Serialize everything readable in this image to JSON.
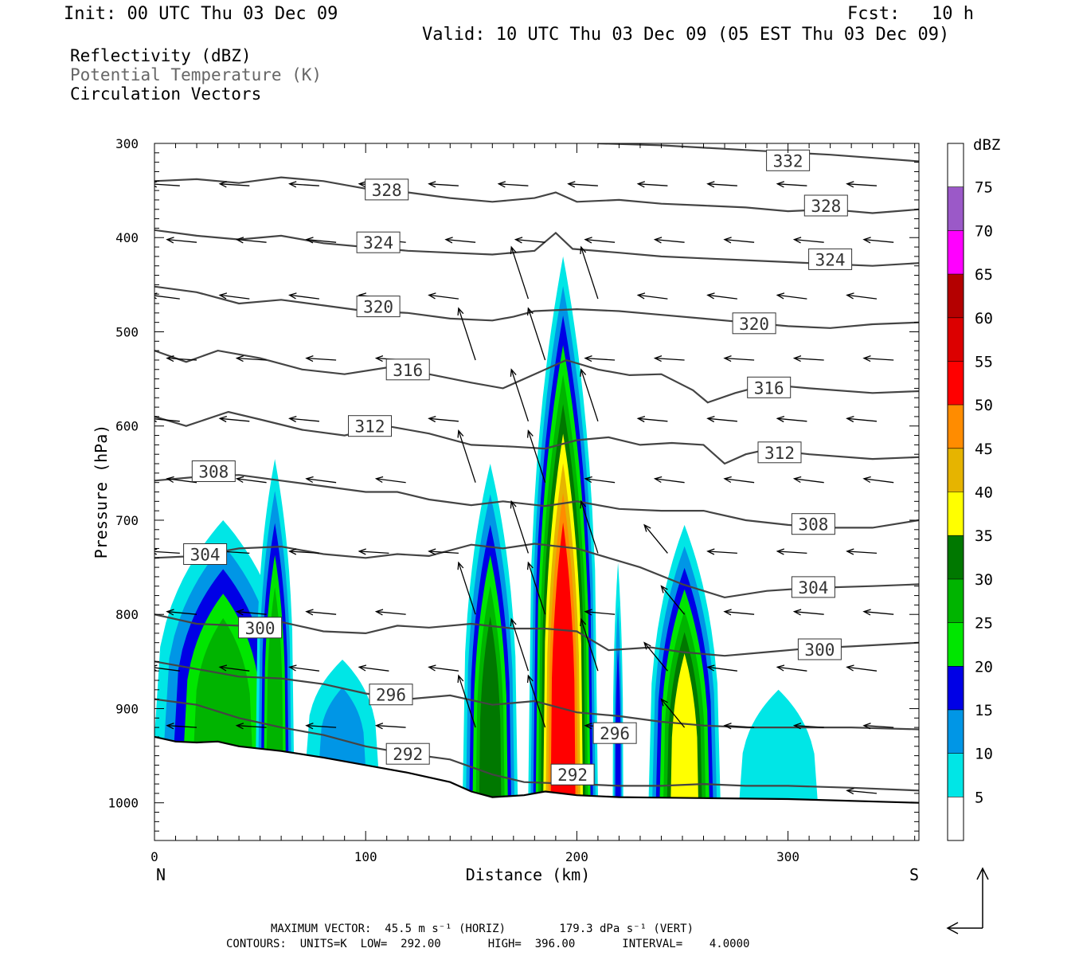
{
  "header": {
    "init": "Init: 00 UTC Thu 03 Dec 09",
    "fcst": "Fcst:   10 h",
    "valid": "Valid: 10 UTC Thu 03 Dec 09 (05 EST Thu 03 Dec 09)"
  },
  "legend": {
    "reflectivity": "Reflectivity (dBZ)",
    "theta": "Potential Temperature (K)",
    "vectors": "Circulation Vectors"
  },
  "colors": {
    "theta_line": "#444444",
    "vector": "#000000",
    "ground": "#000000"
  },
  "chart_data": {
    "type": "cross-section",
    "xlabel": "Distance (km)",
    "ylabel": "Pressure (hPa)",
    "xlim": [
      0,
      362
    ],
    "ylim": [
      1040,
      300
    ],
    "x_ticks": [
      0,
      100,
      200,
      300
    ],
    "y_ticks": [
      300,
      400,
      500,
      600,
      700,
      800,
      900,
      1000
    ],
    "end_labels": {
      "left": "N",
      "right": "S"
    },
    "colorbar": {
      "unit": "dBZ",
      "levels": [
        5,
        10,
        15,
        20,
        25,
        30,
        35,
        40,
        45,
        50,
        55,
        60,
        65,
        70,
        75
      ],
      "colors": [
        "#00e6e6",
        "#0096e6",
        "#0000e6",
        "#00e600",
        "#00b400",
        "#007800",
        "#ffff00",
        "#e6b400",
        "#ff8c00",
        "#ff0000",
        "#dc0000",
        "#b40000",
        "#ff00ff",
        "#9b59c8",
        "#ffffff"
      ]
    },
    "theta_contours": [
      {
        "label": "332",
        "label_at": [
          300,
          318
        ],
        "points": [
          [
            210,
            300
          ],
          [
            240,
            302
          ],
          [
            280,
            307
          ],
          [
            320,
            312
          ],
          [
            362,
            319
          ]
        ]
      },
      {
        "label": "328",
        "label_at": [
          110,
          349
        ],
        "points": [
          [
            0,
            340
          ],
          [
            20,
            338
          ],
          [
            40,
            342
          ],
          [
            60,
            336
          ],
          [
            80,
            340
          ],
          [
            100,
            348
          ],
          [
            120,
            352
          ],
          [
            140,
            358
          ],
          [
            160,
            362
          ],
          [
            180,
            358
          ],
          [
            190,
            352
          ],
          [
            200,
            362
          ],
          [
            220,
            360
          ],
          [
            240,
            364
          ],
          [
            260,
            366
          ],
          [
            280,
            368
          ],
          [
            300,
            372
          ],
          [
            320,
            370
          ],
          [
            340,
            374
          ],
          [
            362,
            370
          ]
        ]
      },
      {
        "label": "328",
        "label_at": [
          318,
          366
        ],
        "points": []
      },
      {
        "label": "324",
        "label_at": [
          106,
          405
        ],
        "points": [
          [
            0,
            392
          ],
          [
            20,
            398
          ],
          [
            40,
            402
          ],
          [
            60,
            398
          ],
          [
            80,
            406
          ],
          [
            100,
            410
          ],
          [
            120,
            414
          ],
          [
            140,
            416
          ],
          [
            160,
            418
          ],
          [
            180,
            414
          ],
          [
            190,
            395
          ],
          [
            198,
            412
          ],
          [
            220,
            416
          ],
          [
            240,
            420
          ],
          [
            260,
            422
          ],
          [
            280,
            424
          ],
          [
            300,
            426
          ],
          [
            320,
            428
          ],
          [
            340,
            430
          ],
          [
            362,
            427
          ]
        ]
      },
      {
        "label": "324",
        "label_at": [
          320,
          423
        ],
        "points": []
      },
      {
        "label": "320",
        "label_at": [
          106,
          473
        ],
        "points": [
          [
            0,
            452
          ],
          [
            20,
            458
          ],
          [
            40,
            470
          ],
          [
            60,
            466
          ],
          [
            80,
            472
          ],
          [
            100,
            478
          ],
          [
            120,
            480
          ],
          [
            140,
            486
          ],
          [
            160,
            488
          ],
          [
            170,
            484
          ],
          [
            180,
            478
          ],
          [
            200,
            476
          ],
          [
            220,
            478
          ],
          [
            240,
            482
          ],
          [
            260,
            486
          ],
          [
            280,
            490
          ],
          [
            300,
            494
          ],
          [
            320,
            496
          ],
          [
            340,
            492
          ],
          [
            362,
            490
          ]
        ]
      },
      {
        "label": "320",
        "label_at": [
          284,
          491
        ],
        "points": []
      },
      {
        "label": "316",
        "label_at": [
          120,
          540
        ],
        "points": [
          [
            0,
            520
          ],
          [
            15,
            532
          ],
          [
            30,
            520
          ],
          [
            50,
            528
          ],
          [
            70,
            540
          ],
          [
            90,
            545
          ],
          [
            110,
            538
          ],
          [
            130,
            545
          ],
          [
            150,
            554
          ],
          [
            165,
            560
          ],
          [
            180,
            545
          ],
          [
            195,
            530
          ],
          [
            210,
            540
          ],
          [
            225,
            546
          ],
          [
            240,
            545
          ],
          [
            255,
            562
          ],
          [
            262,
            575
          ],
          [
            275,
            565
          ],
          [
            290,
            556
          ],
          [
            310,
            560
          ],
          [
            340,
            565
          ],
          [
            362,
            563
          ]
        ]
      },
      {
        "label": "316",
        "label_at": [
          291,
          559
        ],
        "points": []
      },
      {
        "label": "312",
        "label_at": [
          102,
          600
        ],
        "points": [
          [
            0,
            590
          ],
          [
            15,
            600
          ],
          [
            35,
            585
          ],
          [
            50,
            593
          ],
          [
            70,
            604
          ],
          [
            90,
            610
          ],
          [
            110,
            600
          ],
          [
            130,
            608
          ],
          [
            150,
            620
          ],
          [
            170,
            622
          ],
          [
            185,
            624
          ],
          [
            200,
            615
          ],
          [
            215,
            612
          ],
          [
            230,
            620
          ],
          [
            245,
            618
          ],
          [
            260,
            620
          ],
          [
            270,
            640
          ],
          [
            280,
            630
          ],
          [
            290,
            625
          ],
          [
            310,
            630
          ],
          [
            340,
            635
          ],
          [
            362,
            633
          ]
        ]
      },
      {
        "label": "312",
        "label_at": [
          296,
          628
        ],
        "points": []
      },
      {
        "label": "308",
        "label_at": [
          28,
          648
        ],
        "points": [
          [
            0,
            658
          ],
          [
            20,
            654
          ],
          [
            40,
            652
          ],
          [
            60,
            658
          ],
          [
            80,
            664
          ],
          [
            100,
            670
          ],
          [
            115,
            670
          ],
          [
            130,
            678
          ],
          [
            150,
            684
          ],
          [
            165,
            680
          ],
          [
            185,
            685
          ],
          [
            200,
            680
          ],
          [
            220,
            688
          ],
          [
            240,
            690
          ],
          [
            260,
            690
          ],
          [
            280,
            700
          ],
          [
            300,
            705
          ],
          [
            320,
            708
          ],
          [
            340,
            708
          ],
          [
            362,
            700
          ]
        ]
      },
      {
        "label": "308",
        "label_at": [
          312,
          704
        ],
        "points": []
      },
      {
        "label": "304",
        "label_at": [
          24,
          736
        ],
        "points": [
          [
            0,
            740
          ],
          [
            20,
            738
          ],
          [
            40,
            730
          ],
          [
            60,
            728
          ],
          [
            80,
            736
          ],
          [
            100,
            740
          ],
          [
            115,
            736
          ],
          [
            130,
            738
          ],
          [
            150,
            726
          ],
          [
            165,
            730
          ],
          [
            180,
            725
          ],
          [
            200,
            730
          ],
          [
            215,
            740
          ],
          [
            230,
            750
          ],
          [
            250,
            768
          ],
          [
            270,
            782
          ],
          [
            290,
            775
          ],
          [
            310,
            772
          ],
          [
            340,
            770
          ],
          [
            362,
            768
          ]
        ]
      },
      {
        "label": "304",
        "label_at": [
          312,
          771
        ],
        "points": []
      },
      {
        "label": "300",
        "label_at": [
          50,
          814
        ],
        "points": [
          [
            0,
            800
          ],
          [
            20,
            810
          ],
          [
            40,
            812
          ],
          [
            60,
            808
          ],
          [
            80,
            818
          ],
          [
            100,
            820
          ],
          [
            115,
            812
          ],
          [
            130,
            814
          ],
          [
            150,
            810
          ],
          [
            170,
            815
          ],
          [
            185,
            815
          ],
          [
            200,
            818
          ],
          [
            215,
            838
          ],
          [
            235,
            835
          ],
          [
            250,
            840
          ],
          [
            270,
            844
          ],
          [
            290,
            840
          ],
          [
            310,
            836
          ],
          [
            330,
            834
          ],
          [
            362,
            830
          ]
        ]
      },
      {
        "label": "300",
        "label_at": [
          315,
          837
        ],
        "points": []
      },
      {
        "label": "296",
        "label_at": [
          112,
          885
        ],
        "points": [
          [
            0,
            850
          ],
          [
            20,
            858
          ],
          [
            40,
            866
          ],
          [
            60,
            868
          ],
          [
            80,
            874
          ],
          [
            100,
            884
          ],
          [
            120,
            890
          ],
          [
            140,
            886
          ],
          [
            160,
            896
          ],
          [
            180,
            892
          ],
          [
            200,
            904
          ],
          [
            220,
            908
          ],
          [
            240,
            914
          ],
          [
            260,
            918
          ],
          [
            280,
            920
          ],
          [
            300,
            920
          ],
          [
            330,
            920
          ],
          [
            362,
            922
          ]
        ]
      },
      {
        "label": "296",
        "label_at": [
          218,
          926
        ],
        "points": []
      },
      {
        "label": "292",
        "label_at": [
          120,
          948
        ],
        "points": [
          [
            0,
            890
          ],
          [
            20,
            896
          ],
          [
            40,
            910
          ],
          [
            60,
            920
          ],
          [
            80,
            928
          ],
          [
            100,
            940
          ],
          [
            120,
            948
          ],
          [
            140,
            954
          ],
          [
            160,
            970
          ],
          [
            175,
            978
          ],
          [
            200,
            980
          ],
          [
            220,
            982
          ],
          [
            240,
            982
          ],
          [
            260,
            980
          ],
          [
            280,
            982
          ],
          [
            300,
            982
          ],
          [
            330,
            984
          ],
          [
            362,
            987
          ]
        ]
      },
      {
        "label": "292",
        "label_at": [
          198,
          970
        ],
        "points": []
      }
    ],
    "ground_pressure": [
      [
        0,
        930
      ],
      [
        10,
        935
      ],
      [
        20,
        936
      ],
      [
        30,
        935
      ],
      [
        40,
        940
      ],
      [
        60,
        945
      ],
      [
        80,
        952
      ],
      [
        100,
        960
      ],
      [
        120,
        968
      ],
      [
        140,
        978
      ],
      [
        150,
        988
      ],
      [
        160,
        994
      ],
      [
        175,
        992
      ],
      [
        185,
        988
      ],
      [
        200,
        992
      ],
      [
        220,
        994
      ],
      [
        260,
        995
      ],
      [
        300,
        996
      ],
      [
        362,
        1000
      ]
    ],
    "reflectivity_cells": [
      {
        "x_range": [
          0,
          65
        ],
        "top": 700,
        "peak_dbz": 25
      },
      {
        "x_range": [
          48,
          66
        ],
        "top": 635,
        "peak_dbz": 25
      },
      {
        "x_range": [
          72,
          106
        ],
        "top": 848,
        "peak_dbz": 10
      },
      {
        "x_range": [
          146,
          172
        ],
        "top": 640,
        "peak_dbz": 30
      },
      {
        "x_range": [
          177,
          210
        ],
        "top": 420,
        "peak_dbz": 50
      },
      {
        "x_range": [
          217,
          222
        ],
        "top": 745,
        "peak_dbz": 15
      },
      {
        "x_range": [
          234,
          268
        ],
        "top": 705,
        "peak_dbz": 35
      },
      {
        "x_range": [
          277,
          314
        ],
        "top": 880,
        "peak_dbz": 5
      }
    ],
    "vector_rows": [
      345,
      405,
      465,
      530,
      595,
      660,
      735,
      800,
      860,
      920,
      990
    ],
    "vector_x_spacing_km": 33
  },
  "footer": {
    "max_vector": "MAXIMUM VECTOR:  45.5 m s⁻¹ (HORIZ)        179.3 dPa s⁻¹ (VERT)",
    "contours": "CONTOURS:  UNITS=K  LOW=  292.00       HIGH=  396.00       INTERVAL=    4.0000"
  }
}
